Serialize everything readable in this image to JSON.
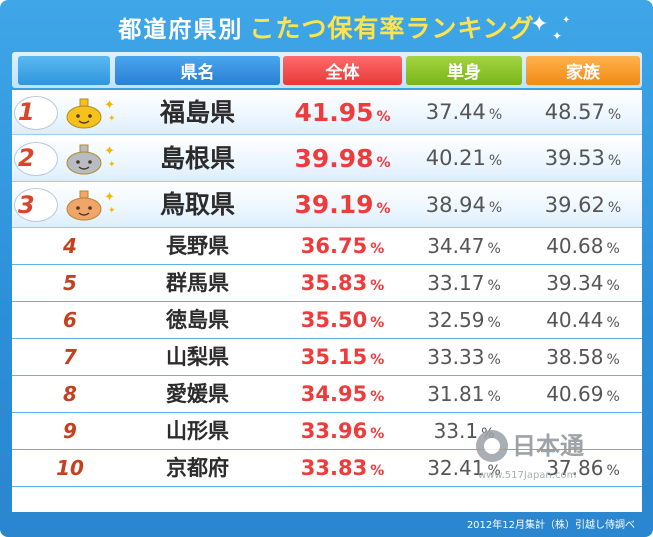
{
  "title": {
    "prefix": "都道府県別",
    "main": "こたつ保有率ランキング"
  },
  "header": {
    "rank": "",
    "prefecture": "県名",
    "total": "全体",
    "single": "単身",
    "family": "家族"
  },
  "chart_data": {
    "type": "table",
    "title": "都道府県別 こたつ保有率ランキング",
    "columns": [
      "県名",
      "全体",
      "単身",
      "家族"
    ],
    "unit": "%",
    "rows": [
      {
        "rank": "1",
        "prefecture": "福島県",
        "total": "41.95",
        "single": "37.44",
        "family": "48.57"
      },
      {
        "rank": "2",
        "prefecture": "島根県",
        "total": "39.98",
        "single": "40.21",
        "family": "39.53"
      },
      {
        "rank": "3",
        "prefecture": "鳥取県",
        "total": "39.19",
        "single": "38.94",
        "family": "39.62"
      },
      {
        "rank": "4",
        "prefecture": "長野県",
        "total": "36.75",
        "single": "34.47",
        "family": "40.68"
      },
      {
        "rank": "5",
        "prefecture": "群馬県",
        "total": "35.83",
        "single": "33.17",
        "family": "39.34"
      },
      {
        "rank": "6",
        "prefecture": "徳島県",
        "total": "35.50",
        "single": "32.59",
        "family": "40.44"
      },
      {
        "rank": "7",
        "prefecture": "山梨県",
        "total": "35.15",
        "single": "33.33",
        "family": "38.58"
      },
      {
        "rank": "8",
        "prefecture": "愛媛県",
        "total": "34.95",
        "single": "31.81",
        "family": "40.69"
      },
      {
        "rank": "9",
        "prefecture": "山形県",
        "total": "33.96",
        "single": "33.1",
        "family": ""
      },
      {
        "rank": "10",
        "prefecture": "京都府",
        "total": "33.83",
        "single": "32.41",
        "family": "37.86"
      }
    ]
  },
  "pct_symbol": "%",
  "footer": "2012年12月集計（株）引越し侍調べ",
  "watermark": {
    "text": "日本通",
    "url": "www.517Japan.com"
  },
  "colors": {
    "gold": "#f4c21a",
    "silver": "#b7bcc2",
    "bronze": "#f2a56a",
    "accent": "#ee3b3b"
  }
}
